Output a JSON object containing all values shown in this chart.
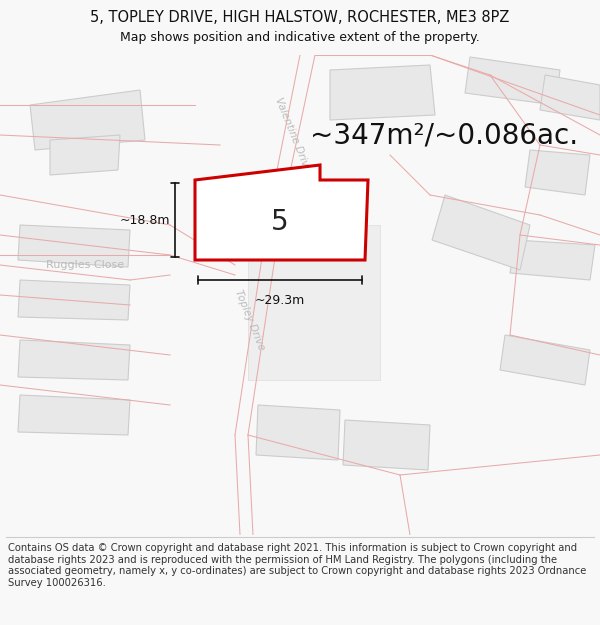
{
  "title": "5, TOPLEY DRIVE, HIGH HALSTOW, ROCHESTER, ME3 8PZ",
  "subtitle": "Map shows position and indicative extent of the property.",
  "area_text": "~347m²/~0.086ac.",
  "label_number": "5",
  "dim_width": "~29.3m",
  "dim_height": "~18.8m",
  "footer": "Contains OS data © Crown copyright and database right 2021. This information is subject to Crown copyright and database rights 2023 and is reproduced with the permission of HM Land Registry. The polygons (including the associated geometry, namely x, y co-ordinates) are subject to Crown copyright and database rights 2023 Ordnance Survey 100026316.",
  "bg_color": "#f8f8f8",
  "map_bg": "#ffffff",
  "road_line_color": "#e8aaaa",
  "building_fill": "#e8e8e8",
  "building_edge": "#cccccc",
  "plot_fill": "#ffffff",
  "plot_edge": "#cc0000",
  "road_label_color": "#bbbbbb",
  "dim_color": "#111111",
  "title_fontsize": 10.5,
  "subtitle_fontsize": 9,
  "area_fontsize": 20,
  "number_fontsize": 20,
  "footer_fontsize": 7.2
}
